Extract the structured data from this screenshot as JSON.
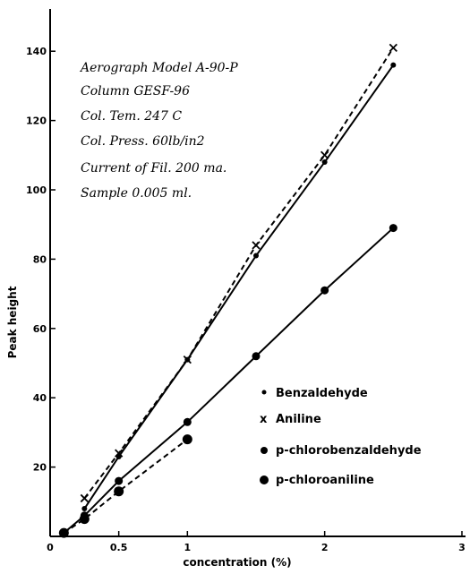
{
  "chart_data": {
    "type": "line",
    "title": "",
    "xlabel": "concentration (%)",
    "ylabel": "Peak height",
    "xlim": [
      0,
      3
    ],
    "ylim": [
      0,
      150
    ],
    "grid": false,
    "legend_position": "bottom-right",
    "x_ticks": [
      "0",
      "0.5",
      "1",
      "2",
      "3"
    ],
    "y_ticks": [
      "20",
      "40",
      "60",
      "80",
      "100",
      "120",
      "140"
    ],
    "annotations": [
      "Aerograph Model A-90-P",
      "Column    GESF-96",
      "Col. Tem.  247 C",
      "Col. Press. 60lb/in2",
      "Current of Fil. 200 ma.",
      "Sample 0.005 ml."
    ],
    "series": [
      {
        "name": "Benzaldehyde",
        "marker": "dot",
        "line": "solid",
        "x": [
          0.25,
          0.5,
          1.0,
          1.5,
          2.0,
          2.5
        ],
        "y": [
          8,
          23,
          51,
          81,
          108,
          136
        ]
      },
      {
        "name": "Aniline",
        "marker": "x",
        "line": "dashed",
        "x": [
          0.25,
          0.5,
          1.0,
          1.5,
          2.0,
          2.5
        ],
        "y": [
          11,
          24,
          51,
          84,
          110,
          141
        ]
      },
      {
        "name": "p-chlorobenzaldehyde",
        "marker": "circle",
        "line": "solid",
        "x": [
          0.1,
          0.25,
          0.5,
          1.0,
          1.5,
          2.0,
          2.5
        ],
        "y": [
          1,
          6,
          16,
          33,
          52,
          71,
          89
        ]
      },
      {
        "name": "p-chloroaniline",
        "marker": "circle-filled",
        "line": "dashed",
        "x": [
          0.1,
          0.25,
          0.5,
          1.0
        ],
        "y": [
          1,
          5,
          13,
          28
        ]
      }
    ]
  }
}
